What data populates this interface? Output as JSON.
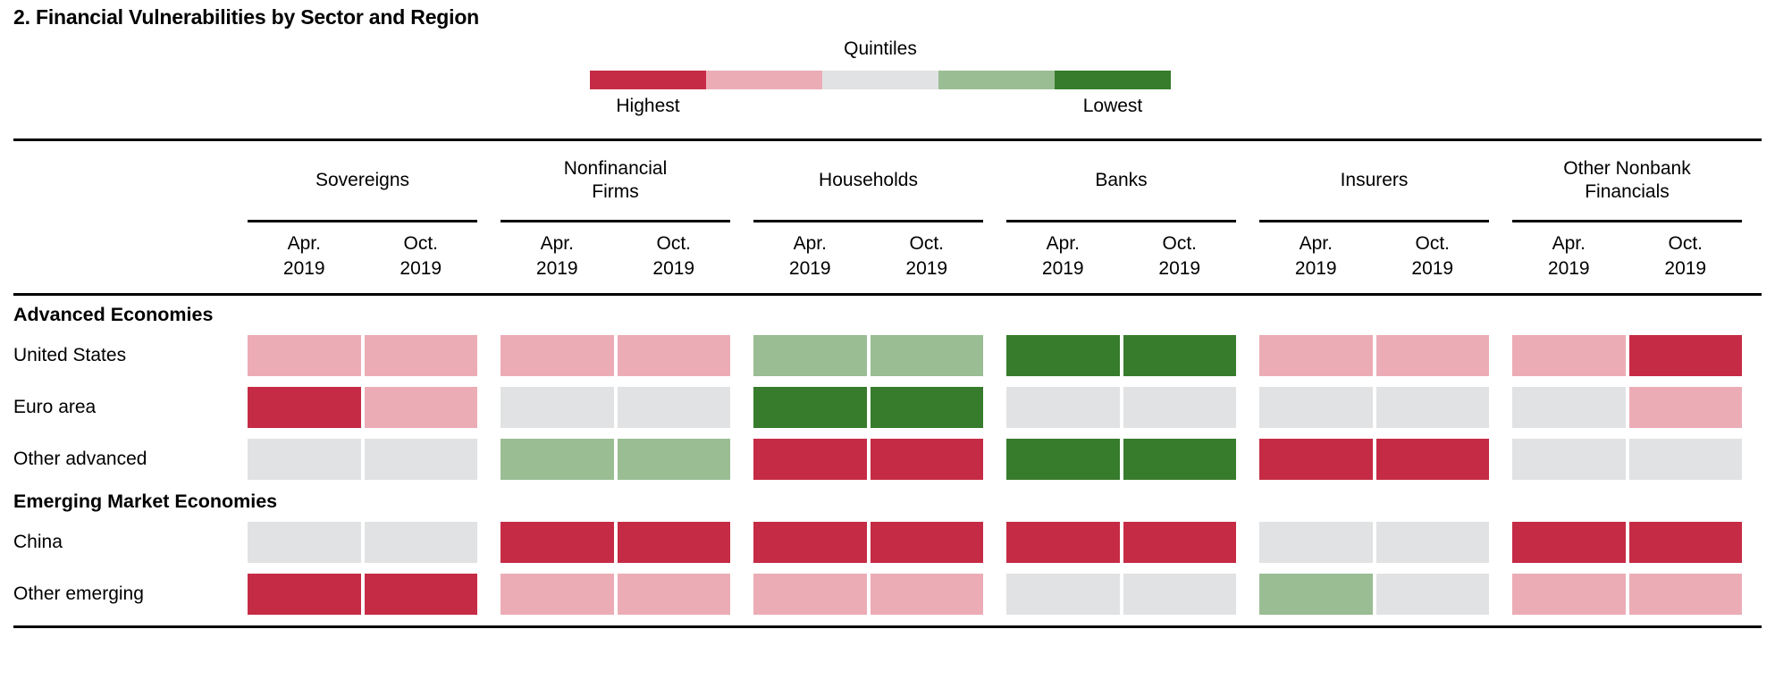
{
  "chart_data": {
    "type": "heatmap",
    "title": "2. Financial Vulnerabilities by Sector and Region",
    "legend": {
      "title": "Quintiles",
      "left_label": "Highest",
      "right_label": "Lowest",
      "position": "top-center",
      "quintiles": [
        {
          "quintile": 1,
          "meaning": "highest vulnerability",
          "color": "#C62B45"
        },
        {
          "quintile": 2,
          "meaning": "second quintile",
          "color": "#ECACB6"
        },
        {
          "quintile": 3,
          "meaning": "middle quintile",
          "color": "#E0E2E3"
        },
        {
          "quintile": 4,
          "meaning": "fourth quintile",
          "color": "#9ABD94"
        },
        {
          "quintile": 5,
          "meaning": "lowest vulnerability",
          "color": "#377C2C"
        }
      ]
    },
    "column_groups": [
      {
        "label": "Sovereigns"
      },
      {
        "label": "Nonfinancial Firms"
      },
      {
        "label": "Households"
      },
      {
        "label": "Banks"
      },
      {
        "label": "Insurers"
      },
      {
        "label": "Other Nonbank Financials"
      }
    ],
    "sub_columns": [
      [
        "Apr.",
        "2019"
      ],
      [
        "Oct.",
        "2019"
      ]
    ],
    "value_meaning": "Each row has 12 values: Apr/Oct 2019 for each of the 6 column groups; 1 = highest quintile (red), 5 = lowest quintile (green)",
    "sections": [
      {
        "label": "Advanced Economies",
        "rows": [
          {
            "label": "United States",
            "quintiles": [
              2,
              2,
              2,
              2,
              4,
              4,
              5,
              5,
              2,
              2,
              2,
              1
            ]
          },
          {
            "label": "Euro area",
            "quintiles": [
              1,
              2,
              3,
              3,
              5,
              5,
              3,
              3,
              3,
              3,
              3,
              2
            ]
          },
          {
            "label": "Other advanced",
            "quintiles": [
              3,
              3,
              4,
              4,
              1,
              1,
              5,
              5,
              1,
              1,
              3,
              3
            ]
          }
        ]
      },
      {
        "label": "Emerging Market Economies",
        "rows": [
          {
            "label": "China",
            "quintiles": [
              3,
              3,
              1,
              1,
              1,
              1,
              1,
              1,
              3,
              3,
              1,
              1
            ]
          },
          {
            "label": "Other emerging",
            "quintiles": [
              1,
              1,
              2,
              2,
              2,
              2,
              3,
              3,
              4,
              3,
              2,
              2
            ]
          }
        ]
      }
    ]
  }
}
